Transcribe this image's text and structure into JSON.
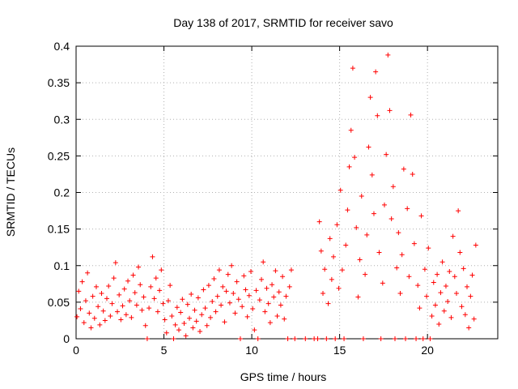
{
  "chart_data": {
    "type": "scatter",
    "title": "Day 138 of 2017, SRMTID for receiver savo",
    "xlabel": "GPS time / hours",
    "ylabel": "SRMTID / TECUs",
    "xlim": [
      0,
      24
    ],
    "ylim": [
      0,
      0.4
    ],
    "xticks": [
      0,
      5,
      10,
      15,
      20
    ],
    "yticks": [
      0,
      0.05,
      0.1,
      0.15,
      0.2,
      0.25,
      0.3,
      0.35,
      0.4
    ],
    "ytick_labels": [
      "0",
      "0.05",
      "0.1",
      "0.15",
      "0.2",
      "0.25",
      "0.3",
      "0.35",
      "0.4"
    ],
    "grid": true,
    "marker": "+",
    "color": "#ff0000",
    "series": [
      {
        "name": "SRMTID",
        "points": [
          [
            0.05,
            0.03
          ],
          [
            0.15,
            0.065
          ],
          [
            0.25,
            0.041
          ],
          [
            0.35,
            0.078
          ],
          [
            0.45,
            0.022
          ],
          [
            0.55,
            0.052
          ],
          [
            0.65,
            0.09
          ],
          [
            0.75,
            0.035
          ],
          [
            0.85,
            0.015
          ],
          [
            0.95,
            0.058
          ],
          [
            1.05,
            0.028
          ],
          [
            1.15,
            0.071
          ],
          [
            1.25,
            0.044
          ],
          [
            1.35,
            0.019
          ],
          [
            1.45,
            0.062
          ],
          [
            1.55,
            0.038
          ],
          [
            1.65,
            0.025
          ],
          [
            1.75,
            0.055
          ],
          [
            1.85,
            0.072
          ],
          [
            1.95,
            0.031
          ],
          [
            2.05,
            0.048
          ],
          [
            2.15,
            0.083
          ],
          [
            2.25,
            0.104
          ],
          [
            2.35,
            0.037
          ],
          [
            2.45,
            0.06
          ],
          [
            2.55,
            0.026
          ],
          [
            2.65,
            0.045
          ],
          [
            2.75,
            0.068
          ],
          [
            2.85,
            0.033
          ],
          [
            2.95,
            0.079
          ],
          [
            3.05,
            0.052
          ],
          [
            3.15,
            0.029
          ],
          [
            3.25,
            0.087
          ],
          [
            3.35,
            0.063
          ],
          [
            3.45,
            0.046
          ],
          [
            3.55,
            0.098
          ],
          [
            3.65,
            0.074
          ],
          [
            3.75,
            0.039
          ],
          [
            3.85,
            0.057
          ],
          [
            3.95,
            0.018
          ],
          [
            4.05,
            0.0
          ],
          [
            4.15,
            0.042
          ],
          [
            4.25,
            0.071
          ],
          [
            4.35,
            0.112
          ],
          [
            4.45,
            0.055
          ],
          [
            4.55,
            0.083
          ],
          [
            4.65,
            0.037
          ],
          [
            4.75,
            0.066
          ],
          [
            4.85,
            0.094
          ],
          [
            4.95,
            0.048
          ],
          [
            5.05,
            0.026
          ],
          [
            5.15,
            0.008
          ],
          [
            5.25,
            0.052
          ],
          [
            5.35,
            0.073
          ],
          [
            5.45,
            0.031
          ],
          [
            5.55,
            0.0
          ],
          [
            5.65,
            0.019
          ],
          [
            5.75,
            0.043
          ],
          [
            5.85,
            0.012
          ],
          [
            5.95,
            0.036
          ],
          [
            6.05,
            0.054
          ],
          [
            6.15,
            0.021
          ],
          [
            6.25,
            0.004
          ],
          [
            6.35,
            0.047
          ],
          [
            6.45,
            0.028
          ],
          [
            6.55,
            0.061
          ],
          [
            6.65,
            0.015
          ],
          [
            6.75,
            0.039
          ],
          [
            6.85,
            0.024
          ],
          [
            6.95,
            0.056
          ],
          [
            7.05,
            0.01
          ],
          [
            7.15,
            0.033
          ],
          [
            7.25,
            0.067
          ],
          [
            7.35,
            0.042
          ],
          [
            7.45,
            0.018
          ],
          [
            7.55,
            0.073
          ],
          [
            7.65,
            0.029
          ],
          [
            7.75,
            0.051
          ],
          [
            7.85,
            0.082
          ],
          [
            7.95,
            0.037
          ],
          [
            8.05,
            0.058
          ],
          [
            8.15,
            0.094
          ],
          [
            8.25,
            0.046
          ],
          [
            8.35,
            0.071
          ],
          [
            8.45,
            0.023
          ],
          [
            8.55,
            0.065
          ],
          [
            8.65,
            0.088
          ],
          [
            8.75,
            0.049
          ],
          [
            8.85,
            0.1
          ],
          [
            8.95,
            0.062
          ],
          [
            9.05,
            0.035
          ],
          [
            9.15,
            0.078
          ],
          [
            9.25,
            0.054
          ],
          [
            9.35,
            0.0
          ],
          [
            9.45,
            0.044
          ],
          [
            9.55,
            0.086
          ],
          [
            9.65,
            0.067
          ],
          [
            9.75,
            0.03
          ],
          [
            9.85,
            0.059
          ],
          [
            9.95,
            0.092
          ],
          [
            10.05,
            0.041
          ],
          [
            10.15,
            0.012
          ],
          [
            10.25,
            0.066
          ],
          [
            10.35,
            0.0
          ],
          [
            10.45,
            0.053
          ],
          [
            10.55,
            0.081
          ],
          [
            10.65,
            0.105
          ],
          [
            10.75,
            0.037
          ],
          [
            10.85,
            0.069
          ],
          [
            10.95,
            0.048
          ],
          [
            11.05,
            0.022
          ],
          [
            11.15,
            0.074
          ],
          [
            11.25,
            0.057
          ],
          [
            11.35,
            0.093
          ],
          [
            11.45,
            0.031
          ],
          [
            11.55,
            0.064
          ],
          [
            11.65,
            0.046
          ],
          [
            11.75,
            0.085
          ],
          [
            11.85,
            0.027
          ],
          [
            11.95,
            0.058
          ],
          [
            12.05,
            0.0
          ],
          [
            12.15,
            0.071
          ],
          [
            12.25,
            0.094
          ],
          [
            12.45,
            0.0
          ],
          [
            13.05,
            0.0
          ],
          [
            13.55,
            0.0
          ],
          [
            13.75,
            0.0
          ],
          [
            13.85,
            0.16
          ],
          [
            13.95,
            0.12
          ],
          [
            14.05,
            0.062
          ],
          [
            14.15,
            0.095
          ],
          [
            14.25,
            0.0
          ],
          [
            14.35,
            0.048
          ],
          [
            14.45,
            0.137
          ],
          [
            14.55,
            0.081
          ],
          [
            14.65,
            0.112
          ],
          [
            14.75,
            0.0
          ],
          [
            14.85,
            0.156
          ],
          [
            14.95,
            0.069
          ],
          [
            15.05,
            0.203
          ],
          [
            15.15,
            0.094
          ],
          [
            15.25,
            0.0
          ],
          [
            15.35,
            0.128
          ],
          [
            15.45,
            0.176
          ],
          [
            15.55,
            0.235
          ],
          [
            15.65,
            0.285
          ],
          [
            15.75,
            0.37
          ],
          [
            15.85,
            0.248
          ],
          [
            15.95,
            0.152
          ],
          [
            16.05,
            0.057
          ],
          [
            16.15,
            0.108
          ],
          [
            16.25,
            0.195
          ],
          [
            16.35,
            0.0
          ],
          [
            16.45,
            0.088
          ],
          [
            16.55,
            0.142
          ],
          [
            16.65,
            0.262
          ],
          [
            16.75,
            0.33
          ],
          [
            16.85,
            0.224
          ],
          [
            16.95,
            0.171
          ],
          [
            17.05,
            0.365
          ],
          [
            17.15,
            0.305
          ],
          [
            17.25,
            0.118
          ],
          [
            17.35,
            0.0
          ],
          [
            17.45,
            0.076
          ],
          [
            17.55,
            0.183
          ],
          [
            17.65,
            0.252
          ],
          [
            17.75,
            0.388
          ],
          [
            17.85,
            0.312
          ],
          [
            17.95,
            0.164
          ],
          [
            18.05,
            0.208
          ],
          [
            18.15,
            0.0
          ],
          [
            18.25,
            0.097
          ],
          [
            18.35,
            0.145
          ],
          [
            18.45,
            0.062
          ],
          [
            18.55,
            0.115
          ],
          [
            18.65,
            0.232
          ],
          [
            18.75,
            0.0
          ],
          [
            18.85,
            0.178
          ],
          [
            18.95,
            0.085
          ],
          [
            19.05,
            0.306
          ],
          [
            19.15,
            0.225
          ],
          [
            19.25,
            0.13
          ],
          [
            19.35,
            0.0
          ],
          [
            19.45,
            0.073
          ],
          [
            19.55,
            0.042
          ],
          [
            19.65,
            0.168
          ],
          [
            19.75,
            0.0
          ],
          [
            19.85,
            0.095
          ],
          [
            19.95,
            0.058
          ],
          [
            20.05,
            0.124
          ],
          [
            20.15,
            0.0
          ],
          [
            20.25,
            0.031
          ],
          [
            20.35,
            0.077
          ],
          [
            20.45,
            0.046
          ],
          [
            20.55,
            0.088
          ],
          [
            20.65,
            0.02
          ],
          [
            20.75,
            0.063
          ],
          [
            20.85,
            0.105
          ],
          [
            20.95,
            0.038
          ],
          [
            21.05,
            0.072
          ],
          [
            21.15,
            0.051
          ],
          [
            21.25,
            0.092
          ],
          [
            21.35,
            0.029
          ],
          [
            21.45,
            0.14
          ],
          [
            21.55,
            0.085
          ],
          [
            21.65,
            0.062
          ],
          [
            21.75,
            0.175
          ],
          [
            21.85,
            0.118
          ],
          [
            21.95,
            0.044
          ],
          [
            22.05,
            0.096
          ],
          [
            22.15,
            0.033
          ],
          [
            22.25,
            0.071
          ],
          [
            22.35,
            0.015
          ],
          [
            22.45,
            0.058
          ],
          [
            22.55,
            0.087
          ],
          [
            22.65,
            0.027
          ],
          [
            22.75,
            0.128
          ]
        ]
      }
    ]
  }
}
